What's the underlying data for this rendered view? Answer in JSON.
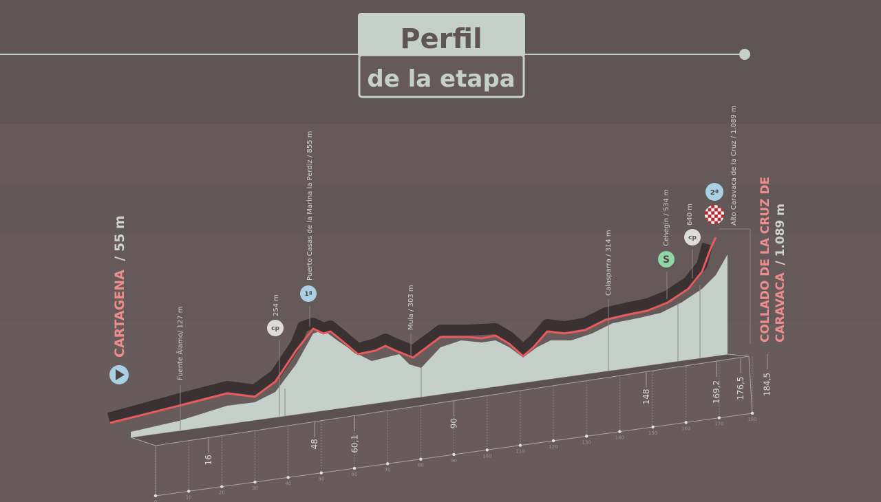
{
  "header": {
    "title": "Perfil",
    "subtitle": "de la etapa"
  },
  "start": {
    "name": "CARTAGENA",
    "elevation": "/ 55 m",
    "icon": "play-icon"
  },
  "finish": {
    "line1": "COLLADO DE LA CRUZ DE",
    "line2_name": "CARAVACA",
    "line2_elev": "/ 1.089 m"
  },
  "points": [
    {
      "label": "Fuente Álamo/ 127 m"
    },
    {
      "label": "254 m",
      "icon": "cp-sprint-icon"
    },
    {
      "label": "Puerto Casas de la Marina la Perdiz / 855 m",
      "icon": "1st-category-climb-icon",
      "badge": "1ª"
    },
    {
      "label": "Mula / 303 m"
    },
    {
      "label": "Calasparra / 314 m"
    },
    {
      "label": "Cehegín / 534 m",
      "icon": "sprint-icon",
      "badge": "S"
    },
    {
      "label": "640 m",
      "icon": "cp-sprint-icon"
    },
    {
      "label": "Alto Caravaca de la Cruz / 1.089 m",
      "icon": "2nd-category-climb-icon",
      "badge": "2ª"
    }
  ],
  "icon_badges": {
    "cp": "cp"
  },
  "km_markers": [
    "16",
    "48",
    "60,1",
    "90",
    "148",
    "169,2",
    "176,5",
    "184,5"
  ],
  "km_ticks": [
    "0",
    "10",
    "20",
    "30",
    "40",
    "50",
    "60",
    "70",
    "80",
    "90",
    "100",
    "110",
    "120",
    "130",
    "140",
    "150",
    "160",
    "170",
    "180"
  ],
  "colors": {
    "background": "#655a59",
    "profile": "#c6d0ca",
    "route": "#e85a5c",
    "shadow": "#3a3132",
    "climb_badge": "#a9d0e3",
    "sprint_badge": "#8fd6a8",
    "start_text": "#ee8d8e"
  }
}
